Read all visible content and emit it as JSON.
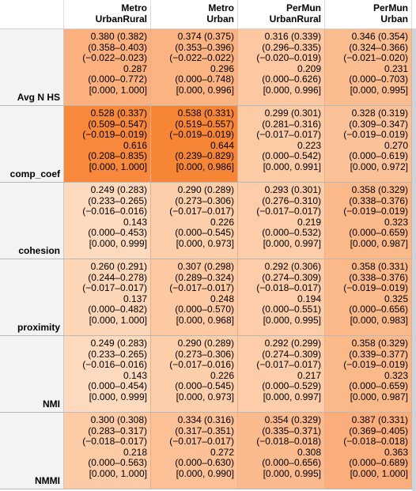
{
  "columns": [
    {
      "line1": "Metro",
      "line2": "UrbanRural"
    },
    {
      "line1": "Metro",
      "line2": "Urban"
    },
    {
      "line1": "PerMun",
      "line2": "UrbanRural"
    },
    {
      "line1": "PerMun",
      "line2": "Urban"
    }
  ],
  "rows": [
    {
      "label": "Avg N HS",
      "cells": [
        {
          "l1": "0.380 (0.382)",
          "l2": "(0.358–0.403)",
          "l3": "(−0.022–0.023)",
          "l4": "0.287",
          "l5": "(0.000–0.772)",
          "l6": "[0.000, 1.000]",
          "bg": "#fbb07e"
        },
        {
          "l1": "0.374 (0.375)",
          "l2": "(0.353–0.396)",
          "l3": "(−0.022–0.022)",
          "l4": "0.296",
          "l5": "(0.000–0.748)",
          "l6": "[0.000, 0.996]",
          "bg": "#fbb381"
        },
        {
          "l1": "0.316 (0.339)",
          "l2": "(0.296–0.335)",
          "l3": "(−0.020–0.019)",
          "l4": "0.209",
          "l5": "(0.000–0.626)",
          "l6": "[0.000, 0.996]",
          "bg": "#fcc7a1"
        },
        {
          "l1": "0.346 (0.354)",
          "l2": "(0.324–0.366)",
          "l3": "(−0.021–0.020)",
          "l4": "0.231",
          "l5": "(0.000–0.703)",
          "l6": "[0.000, 0.995]",
          "bg": "#fbbd90"
        }
      ]
    },
    {
      "label": "comp_coef",
      "cells": [
        {
          "l1": "0.528 (0.337)",
          "l2": "(0.509–0.547)",
          "l3": "(−0.019–0.019)",
          "l4": "0.616",
          "l5": "(0.208–0.835)",
          "l6": "[0.000, 1.000]",
          "bg": "#f7883c"
        },
        {
          "l1": "0.538 (0.331)",
          "l2": "(0.519–0.557)",
          "l3": "(−0.019–0.019)",
          "l4": "0.644",
          "l5": "(0.239–0.829)",
          "l6": "[0.000, 0.986]",
          "bg": "#f78536"
        },
        {
          "l1": "0.299 (0.301)",
          "l2": "(0.281–0.316)",
          "l3": "(−0.017–0.017)",
          "l4": "0.223",
          "l5": "(0.000–0.542)",
          "l6": "[0.000, 0.991]",
          "bg": "#fccba6"
        },
        {
          "l1": "0.328 (0.319)",
          "l2": "(0.309–0.347)",
          "l3": "(−0.019–0.019)",
          "l4": "0.270",
          "l5": "(0.000–0.619)",
          "l6": "[0.000, 0.972]",
          "bg": "#fbc29a"
        }
      ]
    },
    {
      "label": "cohesion",
      "cells": [
        {
          "l1": "0.249 (0.283)",
          "l2": "(0.233–0.265)",
          "l3": "(−0.016–0.016)",
          "l4": "0.143",
          "l5": "(0.000–0.453)",
          "l6": "[0.000, 0.999]",
          "bg": "#fdd9bd"
        },
        {
          "l1": "0.290 (0.289)",
          "l2": "(0.273–0.306)",
          "l3": "(−0.017–0.017)",
          "l4": "0.226",
          "l5": "(0.000–0.545)",
          "l6": "[0.000, 0.973]",
          "bg": "#fcceaa"
        },
        {
          "l1": "0.293 (0.301)",
          "l2": "(0.276–0.310)",
          "l3": "(−0.017–0.017)",
          "l4": "0.219",
          "l5": "(0.000–0.532)",
          "l6": "[0.000, 0.997]",
          "bg": "#fccda8"
        },
        {
          "l1": "0.358 (0.329)",
          "l2": "(0.338–0.376)",
          "l3": "(−0.019–0.019)",
          "l4": "0.323",
          "l5": "(0.000–0.659)",
          "l6": "[0.000, 0.987]",
          "bg": "#fbb98a"
        }
      ]
    },
    {
      "label": "proximity",
      "cells": [
        {
          "l1": "0.260 (0.291)",
          "l2": "(0.244–0.278)",
          "l3": "(−0.017–0.017)",
          "l4": "0.137",
          "l5": "(0.000–0.482)",
          "l6": "[0.000, 1.000]",
          "bg": "#fdd6b8"
        },
        {
          "l1": "0.307 (0.298)",
          "l2": "(0.289–0.324)",
          "l3": "(−0.017–0.017)",
          "l4": "0.248",
          "l5": "(0.000–0.570)",
          "l6": "[0.000, 0.968]",
          "bg": "#fcc9a3"
        },
        {
          "l1": "0.292 (0.306)",
          "l2": "(0.274–0.309)",
          "l3": "(−0.018–0.017)",
          "l4": "0.194",
          "l5": "(0.000–0.551)",
          "l6": "[0.000, 0.995]",
          "bg": "#fccda8"
        },
        {
          "l1": "0.358 (0.331)",
          "l2": "(0.338–0.376)",
          "l3": "(−0.019–0.019)",
          "l4": "0.325",
          "l5": "(0.000–0.656)",
          "l6": "[0.000, 0.983]",
          "bg": "#fbb98a"
        }
      ]
    },
    {
      "label": "NMI",
      "cells": [
        {
          "l1": "0.249 (0.283)",
          "l2": "(0.233–0.265)",
          "l3": "(−0.016–0.016)",
          "l4": "0.143",
          "l5": "(0.000–0.454)",
          "l6": "[0.000, 0.999]",
          "bg": "#fdd9bd"
        },
        {
          "l1": "0.290 (0.289)",
          "l2": "(0.273–0.306)",
          "l3": "(−0.017–0.016)",
          "l4": "0.226",
          "l5": "(0.000–0.545)",
          "l6": "[0.000, 0.973]",
          "bg": "#fcceaa"
        },
        {
          "l1": "0.292 (0.299)",
          "l2": "(0.274–0.309)",
          "l3": "(−0.017–0.017)",
          "l4": "0.217",
          "l5": "(0.000–0.529)",
          "l6": "[0.000, 0.997]",
          "bg": "#fccda8"
        },
        {
          "l1": "0.358 (0.329)",
          "l2": "(0.339–0.377)",
          "l3": "(−0.019–0.019)",
          "l4": "0.323",
          "l5": "(0.000–0.659)",
          "l6": "[0.000, 0.987]",
          "bg": "#fbb98a"
        }
      ]
    },
    {
      "label": "NMMI",
      "cells": [
        {
          "l1": "0.300 (0.308)",
          "l2": "(0.283–0.317)",
          "l3": "(−0.018–0.017)",
          "l4": "0.218",
          "l5": "(0.000–0.563)",
          "l6": "[0.000, 1.000]",
          "bg": "#fccba6"
        },
        {
          "l1": "0.334 (0.316)",
          "l2": "(0.317–0.351)",
          "l3": "(−0.017–0.017)",
          "l4": "0.272",
          "l5": "(0.000–0.630)",
          "l6": "[0.000, 0.990]",
          "bg": "#fbc096"
        },
        {
          "l1": "0.354 (0.329)",
          "l2": "(0.335–0.371)",
          "l3": "(−0.018–0.018)",
          "l4": "0.308",
          "l5": "(0.000–0.656)",
          "l6": "[0.000, 0.995]",
          "bg": "#fbba8d"
        },
        {
          "l1": "0.387 (0.331)",
          "l2": "(0.369–0.405)",
          "l3": "(−0.018–0.018)",
          "l4": "0.363",
          "l5": "(0.000–0.689)",
          "l6": "[0.000, 1.000]",
          "bg": "#fbae7b"
        }
      ]
    }
  ]
}
